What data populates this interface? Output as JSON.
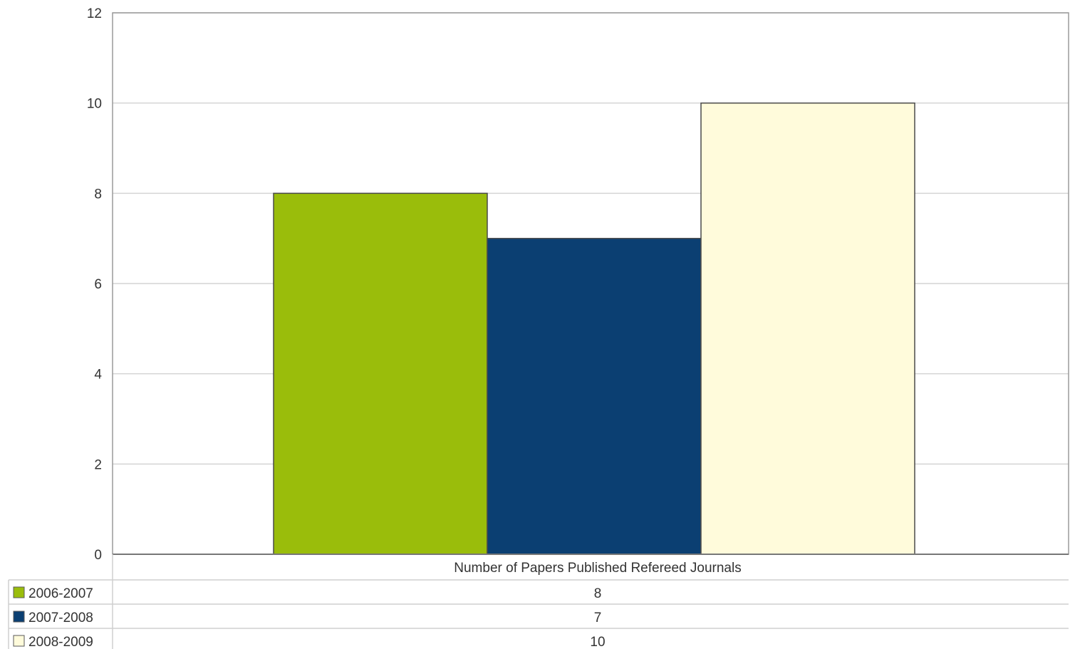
{
  "chart_data": {
    "type": "bar",
    "categories": [
      "Number of Papers Published Refereed Journals"
    ],
    "series": [
      {
        "name": "2006-2007",
        "values": [
          8
        ],
        "color": "#9abd0b"
      },
      {
        "name": "2007-2008",
        "values": [
          7
        ],
        "color": "#0b3f72"
      },
      {
        "name": "2008-2009",
        "values": [
          10
        ],
        "color": "#fffbdb"
      }
    ],
    "ylim": [
      0,
      12
    ],
    "yticks": [
      0,
      2,
      4,
      6,
      8,
      10,
      12
    ],
    "grid": true,
    "legend": "data-table-below",
    "title": "",
    "xlabel": "",
    "ylabel": ""
  }
}
